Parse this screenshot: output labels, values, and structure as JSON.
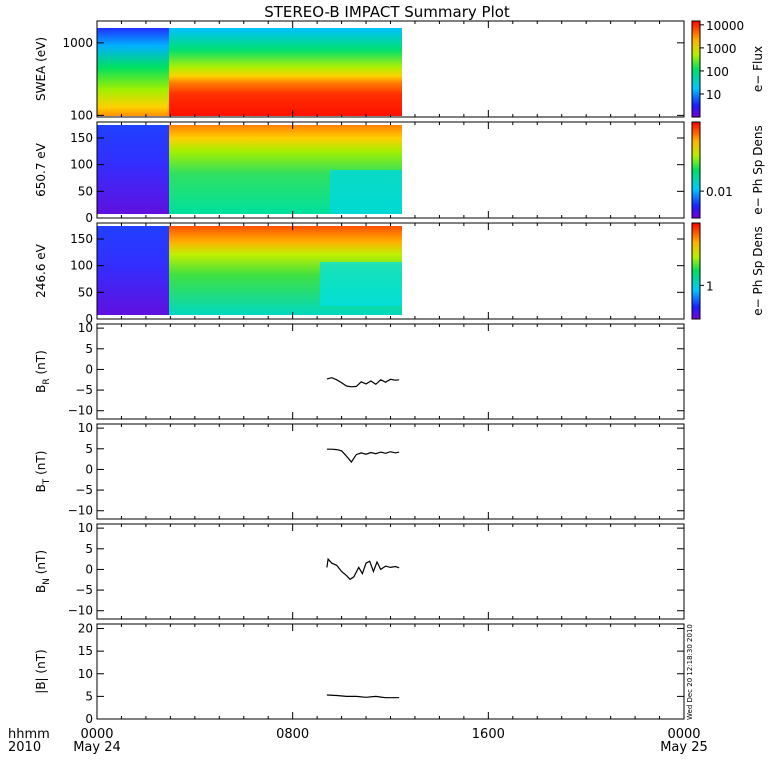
{
  "page": {
    "title": "STEREO-B IMPACT Summary Plot",
    "footer_left_top": "hhmm",
    "footer_left_bottom": "2010",
    "side_stamp": "Wed Dec 20 12:18:30 2010"
  },
  "time_axis": {
    "range_hours": [
      0,
      24
    ],
    "ticks": [
      {
        "t": 0,
        "label": "0000",
        "sub": "May 24"
      },
      {
        "t": 8,
        "label": "0800",
        "sub": ""
      },
      {
        "t": 16,
        "label": "1600",
        "sub": ""
      },
      {
        "t": 24,
        "label": "0000",
        "sub": "May 25"
      }
    ],
    "data_coverage_hours": [
      0,
      12.35
    ]
  },
  "chart_data": [
    {
      "type": "heatmap",
      "id": "swea",
      "ylabel": "SWEA (eV)",
      "yscale": "log",
      "ylim": [
        95,
        2000
      ],
      "yticks": [
        {
          "v": 100,
          "label": "100"
        },
        {
          "v": 1000,
          "label": "1000"
        }
      ],
      "colorbar": {
        "label": "e− Flux",
        "scale": "log",
        "ticks": [
          {
            "frac": 0.96,
            "label": "10000"
          },
          {
            "frac": 0.72,
            "label": "1000"
          },
          {
            "frac": 0.48,
            "label": "100"
          },
          {
            "frac": 0.24,
            "label": "10"
          }
        ]
      }
    },
    {
      "type": "heatmap",
      "id": "pad650",
      "ylabel": "650.7 eV",
      "ylim": [
        0,
        180
      ],
      "yticks": [
        {
          "v": 0,
          "label": "0"
        },
        {
          "v": 50,
          "label": "50"
        },
        {
          "v": 100,
          "label": "100"
        },
        {
          "v": 150,
          "label": "150"
        }
      ],
      "colorbar": {
        "label": "e− Ph Sp Dens",
        "ticks": [
          {
            "frac": 0.28,
            "label": "0.01"
          }
        ]
      }
    },
    {
      "type": "heatmap",
      "id": "pad246",
      "ylabel": "246.6 eV",
      "ylim": [
        0,
        180
      ],
      "yticks": [
        {
          "v": 0,
          "label": "0"
        },
        {
          "v": 50,
          "label": "50"
        },
        {
          "v": 100,
          "label": "100"
        },
        {
          "v": 150,
          "label": "150"
        }
      ],
      "colorbar": {
        "label": "e− Ph Sp Dens",
        "ticks": [
          {
            "frac": 0.35,
            "label": "1"
          }
        ]
      }
    },
    {
      "type": "line",
      "id": "br",
      "ylabel": "B",
      "ysub": "R",
      "yunit": " (nT)",
      "ylim": [
        -12,
        11
      ],
      "yticks": [
        {
          "v": -10,
          "label": "−10"
        },
        {
          "v": -5,
          "label": "−5"
        },
        {
          "v": 0,
          "label": "0"
        },
        {
          "v": 5,
          "label": "5"
        },
        {
          "v": 10,
          "label": "10"
        }
      ],
      "x": [
        9.4,
        9.6,
        9.8,
        10.0,
        10.2,
        10.4,
        10.6,
        10.8,
        11.0,
        11.2,
        11.4,
        11.6,
        11.8,
        12.0,
        12.2,
        12.35
      ],
      "y": [
        -2.3,
        -2.0,
        -2.5,
        -3.2,
        -4.0,
        -4.2,
        -4.1,
        -3.0,
        -3.5,
        -2.8,
        -3.6,
        -2.5,
        -3.1,
        -2.4,
        -2.6,
        -2.5
      ]
    },
    {
      "type": "line",
      "id": "bt",
      "ylabel": "B",
      "ysub": "T",
      "yunit": " (nT)",
      "ylim": [
        -12,
        11
      ],
      "yticks": [
        {
          "v": -10,
          "label": "−10"
        },
        {
          "v": -5,
          "label": "−5"
        },
        {
          "v": 0,
          "label": "0"
        },
        {
          "v": 5,
          "label": "5"
        },
        {
          "v": 10,
          "label": "10"
        }
      ],
      "x": [
        9.4,
        9.6,
        9.8,
        10.0,
        10.2,
        10.4,
        10.6,
        10.8,
        11.0,
        11.2,
        11.4,
        11.6,
        11.8,
        12.0,
        12.2,
        12.35
      ],
      "y": [
        4.9,
        4.9,
        4.8,
        4.5,
        3.2,
        1.8,
        3.6,
        4.0,
        3.7,
        4.1,
        3.8,
        4.2,
        3.9,
        4.3,
        4.0,
        4.2
      ]
    },
    {
      "type": "line",
      "id": "bn",
      "ylabel": "B",
      "ysub": "N",
      "yunit": " (nT)",
      "ylim": [
        -12,
        11
      ],
      "yticks": [
        {
          "v": -10,
          "label": "−10"
        },
        {
          "v": -5,
          "label": "−5"
        },
        {
          "v": 0,
          "label": "0"
        },
        {
          "v": 5,
          "label": "5"
        },
        {
          "v": 10,
          "label": "10"
        }
      ],
      "x": [
        9.4,
        9.45,
        9.6,
        9.8,
        10.0,
        10.2,
        10.35,
        10.5,
        10.7,
        10.85,
        11.0,
        11.15,
        11.3,
        11.45,
        11.6,
        11.8,
        12.0,
        12.2,
        12.35
      ],
      "y": [
        0.5,
        2.5,
        1.5,
        1.0,
        -0.5,
        -1.5,
        -2.4,
        -1.8,
        0.5,
        -1.0,
        1.5,
        2.0,
        -0.5,
        1.8,
        0.0,
        0.8,
        0.5,
        0.7,
        0.4
      ]
    },
    {
      "type": "line",
      "id": "bmag",
      "ylabel": "|B| (nT)",
      "ylim": [
        0,
        21
      ],
      "yticks": [
        {
          "v": 0,
          "label": "0"
        },
        {
          "v": 5,
          "label": "5"
        },
        {
          "v": 10,
          "label": "10"
        },
        {
          "v": 15,
          "label": "15"
        },
        {
          "v": 20,
          "label": "20"
        }
      ],
      "x": [
        9.4,
        9.8,
        10.2,
        10.6,
        11.0,
        11.4,
        11.8,
        12.2,
        12.35
      ],
      "y": [
        5.3,
        5.2,
        5.0,
        5.0,
        4.8,
        5.0,
        4.7,
        4.7,
        4.7
      ]
    }
  ]
}
